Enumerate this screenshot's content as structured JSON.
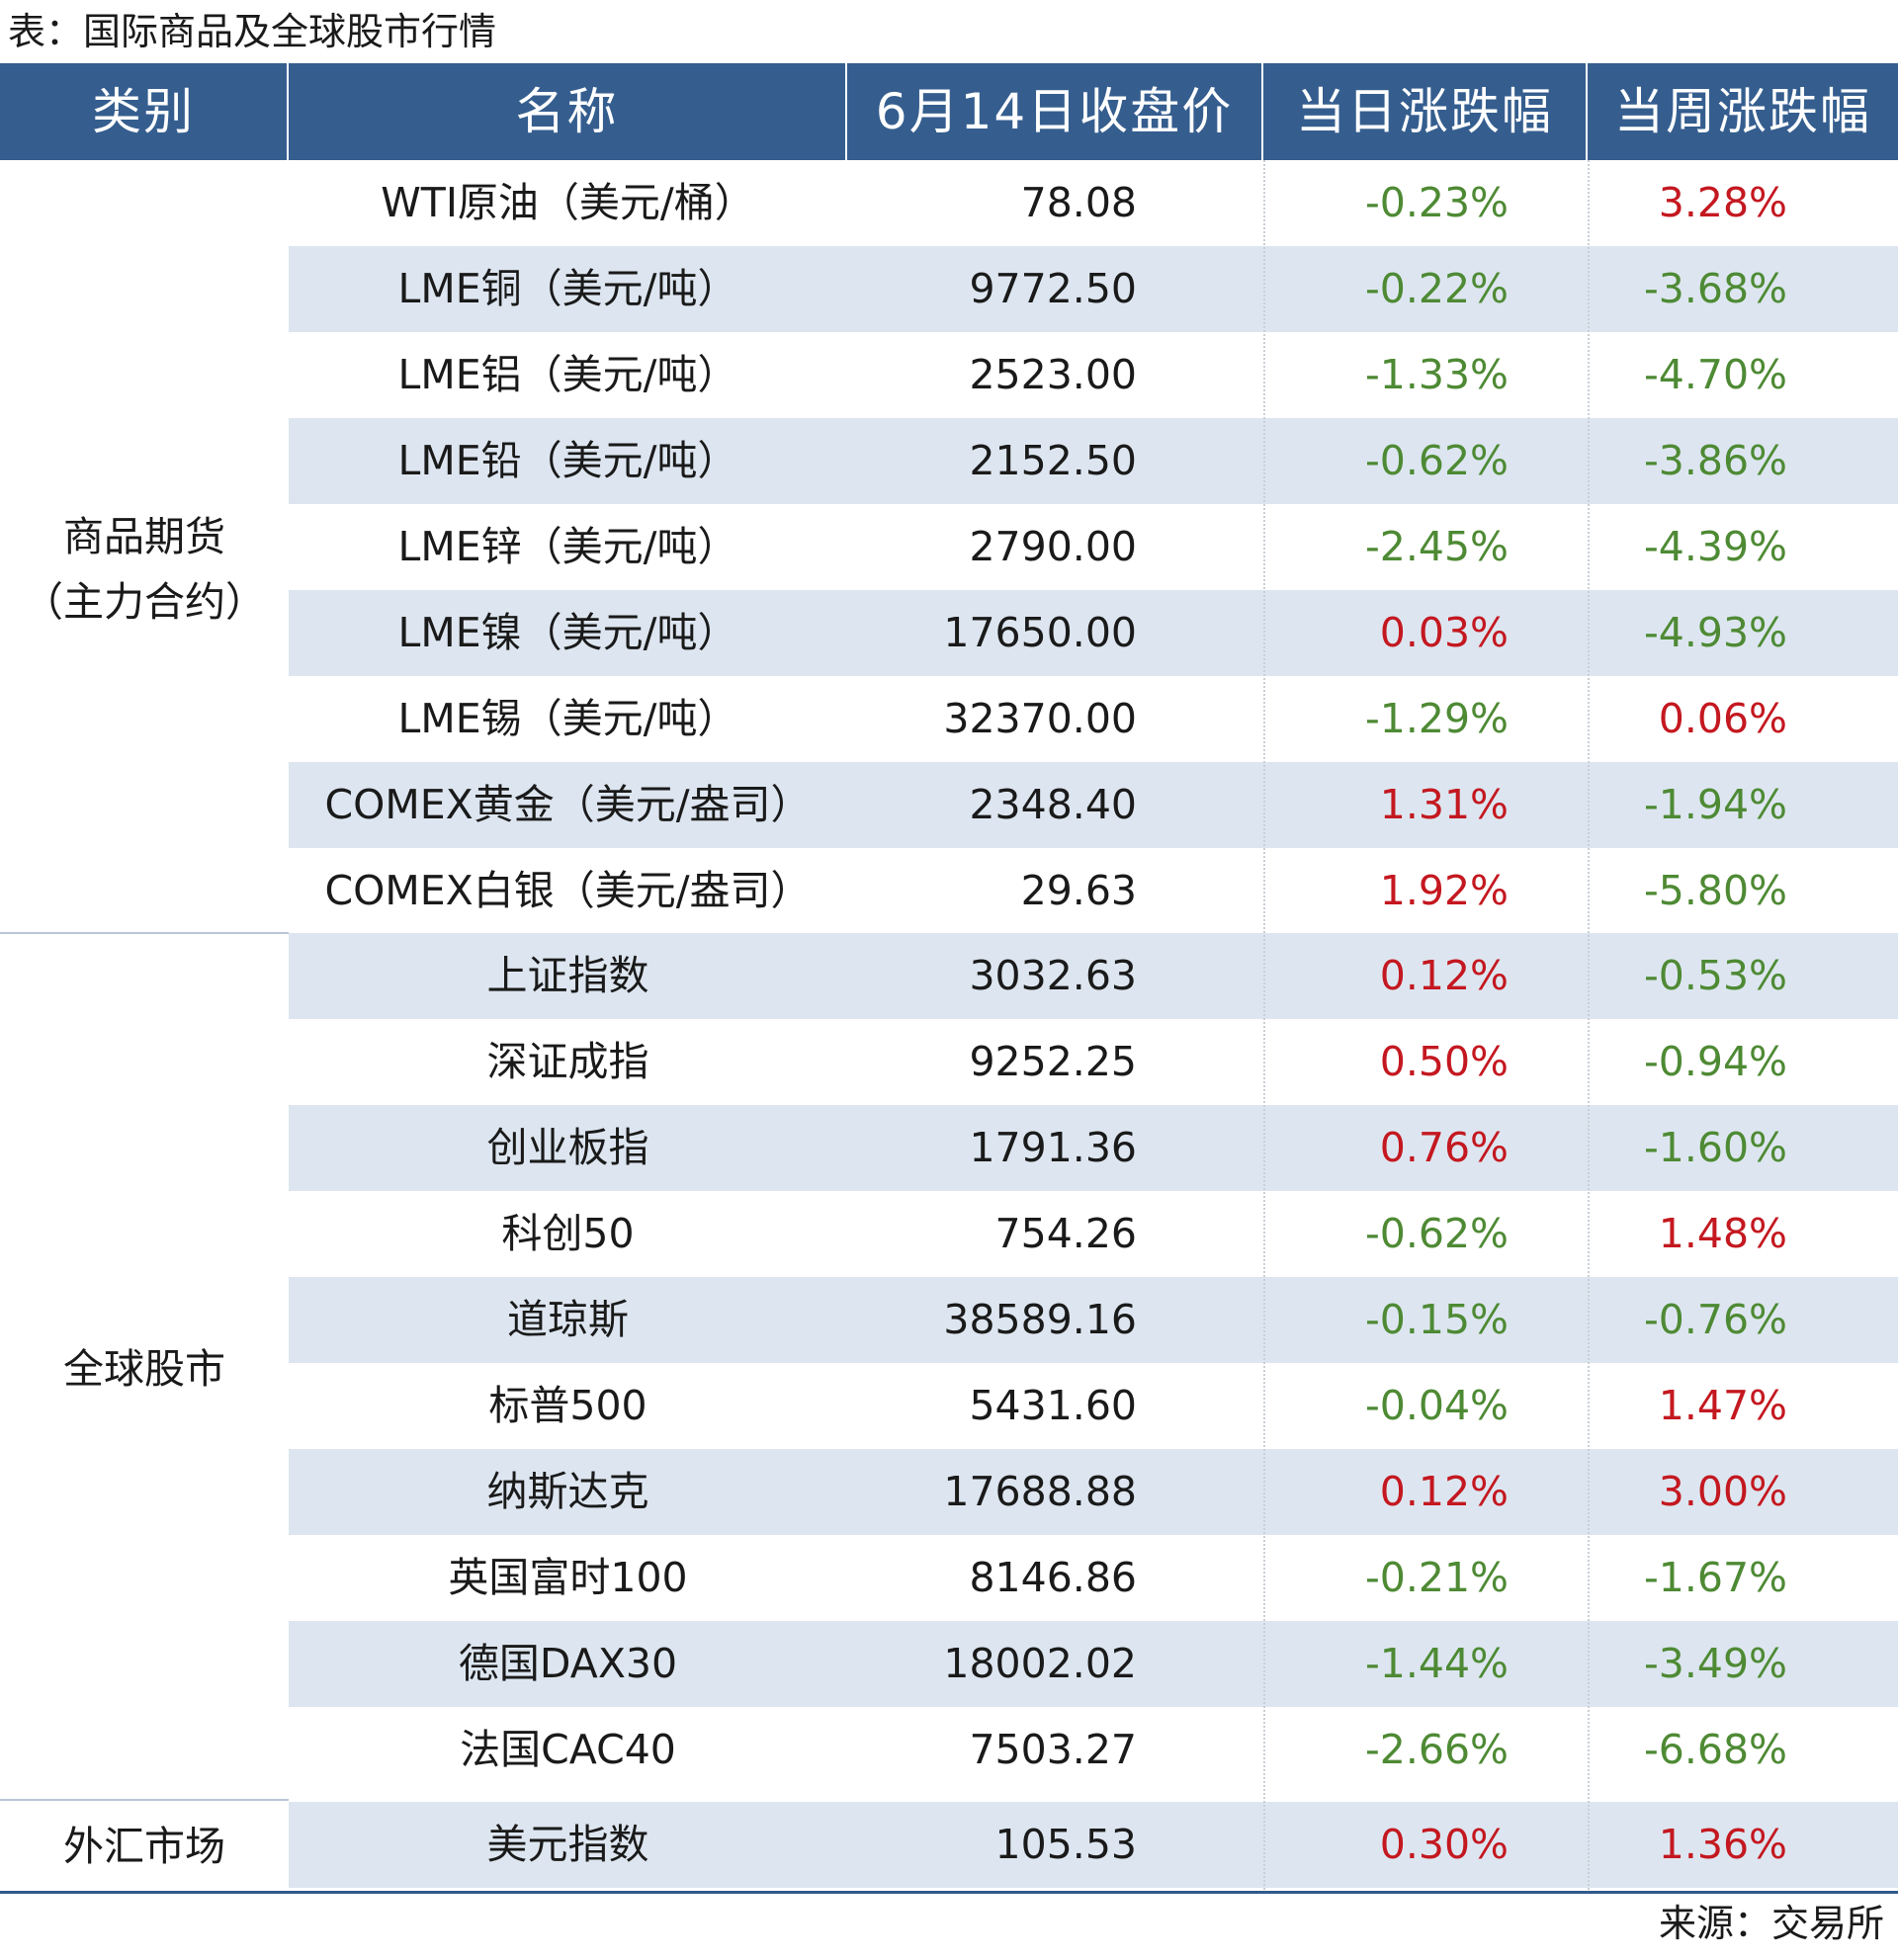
{
  "caption": "表：国际商品及全球股市行情",
  "headers": {
    "category": "类别",
    "name": "名称",
    "close": "6月14日收盘价",
    "daily": "当日涨跌幅",
    "weekly": "当周涨跌幅"
  },
  "categories": [
    {
      "line1": "商品期货",
      "line2": "（主力合约）"
    },
    {
      "line1": "全球股市",
      "line2": ""
    },
    {
      "line1": "外汇市场",
      "line2": ""
    }
  ],
  "rows": [
    {
      "name": "WTI原油（美元/桶）",
      "price": "78.08",
      "daily": "-0.23%",
      "weekly": "3.28%",
      "daily_dir": "neg",
      "weekly_dir": "pos"
    },
    {
      "name": "LME铜（美元/吨）",
      "price": "9772.50",
      "daily": "-0.22%",
      "weekly": "-3.68%",
      "daily_dir": "neg",
      "weekly_dir": "neg"
    },
    {
      "name": "LME铝（美元/吨）",
      "price": "2523.00",
      "daily": "-1.33%",
      "weekly": "-4.70%",
      "daily_dir": "neg",
      "weekly_dir": "neg"
    },
    {
      "name": "LME铅（美元/吨）",
      "price": "2152.50",
      "daily": "-0.62%",
      "weekly": "-3.86%",
      "daily_dir": "neg",
      "weekly_dir": "neg"
    },
    {
      "name": "LME锌（美元/吨）",
      "price": "2790.00",
      "daily": "-2.45%",
      "weekly": "-4.39%",
      "daily_dir": "neg",
      "weekly_dir": "neg"
    },
    {
      "name": "LME镍（美元/吨）",
      "price": "17650.00",
      "daily": "0.03%",
      "weekly": "-4.93%",
      "daily_dir": "pos",
      "weekly_dir": "neg"
    },
    {
      "name": "LME锡（美元/吨）",
      "price": "32370.00",
      "daily": "-1.29%",
      "weekly": "0.06%",
      "daily_dir": "neg",
      "weekly_dir": "pos"
    },
    {
      "name": "COMEX黄金（美元/盎司）",
      "price": "2348.40",
      "daily": "1.31%",
      "weekly": "-1.94%",
      "daily_dir": "pos",
      "weekly_dir": "neg"
    },
    {
      "name": "COMEX白银（美元/盎司）",
      "price": "29.63",
      "daily": "1.92%",
      "weekly": "-5.80%",
      "daily_dir": "pos",
      "weekly_dir": "neg"
    },
    {
      "name": "上证指数",
      "price": "3032.63",
      "daily": "0.12%",
      "weekly": "-0.53%",
      "daily_dir": "pos",
      "weekly_dir": "neg"
    },
    {
      "name": "深证成指",
      "price": "9252.25",
      "daily": "0.50%",
      "weekly": "-0.94%",
      "daily_dir": "pos",
      "weekly_dir": "neg"
    },
    {
      "name": "创业板指",
      "price": "1791.36",
      "daily": "0.76%",
      "weekly": "-1.60%",
      "daily_dir": "pos",
      "weekly_dir": "neg"
    },
    {
      "name": "科创50",
      "price": "754.26",
      "daily": "-0.62%",
      "weekly": "1.48%",
      "daily_dir": "neg",
      "weekly_dir": "pos"
    },
    {
      "name": "道琼斯",
      "price": "38589.16",
      "daily": "-0.15%",
      "weekly": "-0.76%",
      "daily_dir": "neg",
      "weekly_dir": "neg"
    },
    {
      "name": "标普500",
      "price": "5431.60",
      "daily": "-0.04%",
      "weekly": "1.47%",
      "daily_dir": "neg",
      "weekly_dir": "pos"
    },
    {
      "name": "纳斯达克",
      "price": "17688.88",
      "daily": "0.12%",
      "weekly": "3.00%",
      "daily_dir": "pos",
      "weekly_dir": "pos"
    },
    {
      "name": "英国富时100",
      "price": "8146.86",
      "daily": "-0.21%",
      "weekly": "-1.67%",
      "daily_dir": "neg",
      "weekly_dir": "neg"
    },
    {
      "name": "德国DAX30",
      "price": "18002.02",
      "daily": "-1.44%",
      "weekly": "-3.49%",
      "daily_dir": "neg",
      "weekly_dir": "neg"
    },
    {
      "name": "法国CAC40",
      "price": "7503.27",
      "daily": "-2.66%",
      "weekly": "-6.68%",
      "daily_dir": "neg",
      "weekly_dir": "neg"
    },
    {
      "name": "美元指数",
      "price": "105.53",
      "daily": "0.30%",
      "weekly": "1.36%",
      "daily_dir": "pos",
      "weekly_dir": "pos"
    }
  ],
  "source": "来源：交易所",
  "colors": {
    "header_bg": "#355e8f",
    "row_shade": "#dde6f0",
    "up": "#c41820",
    "down": "#4e8a34"
  }
}
